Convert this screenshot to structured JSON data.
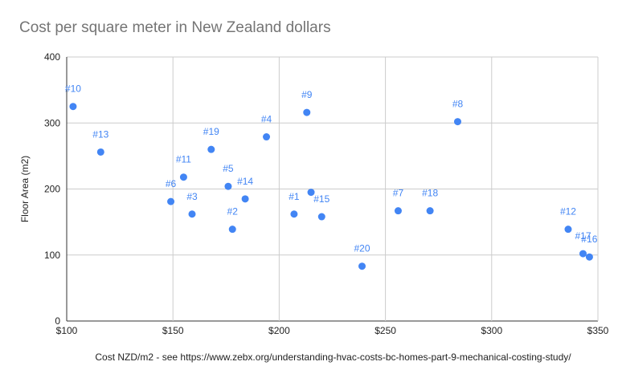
{
  "chart_data": {
    "type": "scatter",
    "title": "Cost per square meter in New Zealand dollars",
    "xlabel": "Cost NZD/m2   - see https://www.zebx.org/understanding-hvac-costs-bc-homes-part-9-mechanical-costing-study/",
    "ylabel": "Floor Area (m2)",
    "xlim": [
      100,
      350
    ],
    "ylim": [
      0,
      400
    ],
    "x_ticks": [
      100,
      150,
      200,
      250,
      300,
      350
    ],
    "x_tick_labels": [
      "$100",
      "$150",
      "$200",
      "$250",
      "$300",
      "$350"
    ],
    "y_ticks": [
      0,
      100,
      200,
      300,
      400
    ],
    "y_tick_labels": [
      "0",
      "100",
      "200",
      "300",
      "400"
    ],
    "grid": true,
    "point_color": "#4285f4",
    "points": [
      {
        "label": "#1",
        "x": 207,
        "y": 162
      },
      {
        "label": "#2",
        "x": 178,
        "y": 139
      },
      {
        "label": "#3",
        "x": 159,
        "y": 162
      },
      {
        "label": "#4",
        "x": 194,
        "y": 279
      },
      {
        "label": "#5",
        "x": 176,
        "y": 204
      },
      {
        "label": "#6",
        "x": 149,
        "y": 181
      },
      {
        "label": "#7",
        "x": 256,
        "y": 167
      },
      {
        "label": "#8",
        "x": 284,
        "y": 302
      },
      {
        "label": "#9",
        "x": 213,
        "y": 316
      },
      {
        "label": "#10",
        "x": 103,
        "y": 325
      },
      {
        "label": "#11",
        "x": 155,
        "y": 218
      },
      {
        "label": "#12",
        "x": 336,
        "y": 139
      },
      {
        "label": "#13",
        "x": 116,
        "y": 256
      },
      {
        "label": "#14",
        "x": 184,
        "y": 185
      },
      {
        "label": "#15",
        "x": 220,
        "y": 158
      },
      {
        "label": "#16",
        "x": 346,
        "y": 97
      },
      {
        "label": "#17",
        "x": 343,
        "y": 102
      },
      {
        "label": "#18",
        "x": 271,
        "y": 167
      },
      {
        "label": "#19",
        "x": 168,
        "y": 260
      },
      {
        "label": "#20",
        "x": 239,
        "y": 83
      },
      {
        "label": "",
        "x": 215,
        "y": 195
      }
    ]
  }
}
